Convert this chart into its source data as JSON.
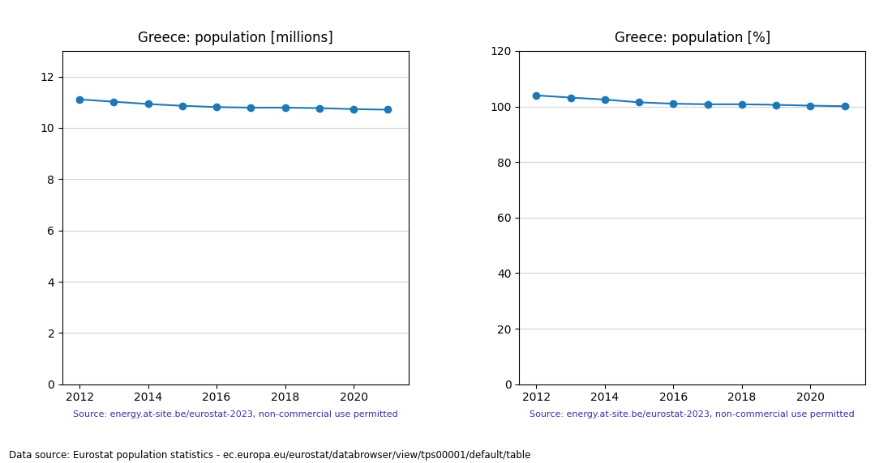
{
  "years": [
    2012,
    2013,
    2014,
    2015,
    2016,
    2017,
    2018,
    2019,
    2020,
    2021
  ],
  "pop_millions": [
    11.11,
    11.02,
    10.93,
    10.86,
    10.81,
    10.79,
    10.79,
    10.77,
    10.73,
    10.71
  ],
  "pop_percent": [
    104.0,
    103.2,
    102.5,
    101.5,
    101.0,
    100.8,
    100.8,
    100.6,
    100.3,
    100.1
  ],
  "title_millions": "Greece: population [millions]",
  "title_percent": "Greece: population [%]",
  "source_text": "Source: energy.at-site.be/eurostat-2023, non-commercial use permitted",
  "footer_text": "Data source: Eurostat population statistics - ec.europa.eu/eurostat/databrowser/view/tps00001/default/table",
  "line_color": "#1f77b4",
  "source_color": "#3333aa",
  "ylim_millions": [
    0,
    13
  ],
  "ylim_percent": [
    0,
    120
  ],
  "yticks_millions": [
    0,
    2,
    4,
    6,
    8,
    10,
    12
  ],
  "yticks_percent": [
    0,
    20,
    40,
    60,
    80,
    100,
    120
  ],
  "xticks": [
    2012,
    2014,
    2016,
    2018,
    2020
  ]
}
